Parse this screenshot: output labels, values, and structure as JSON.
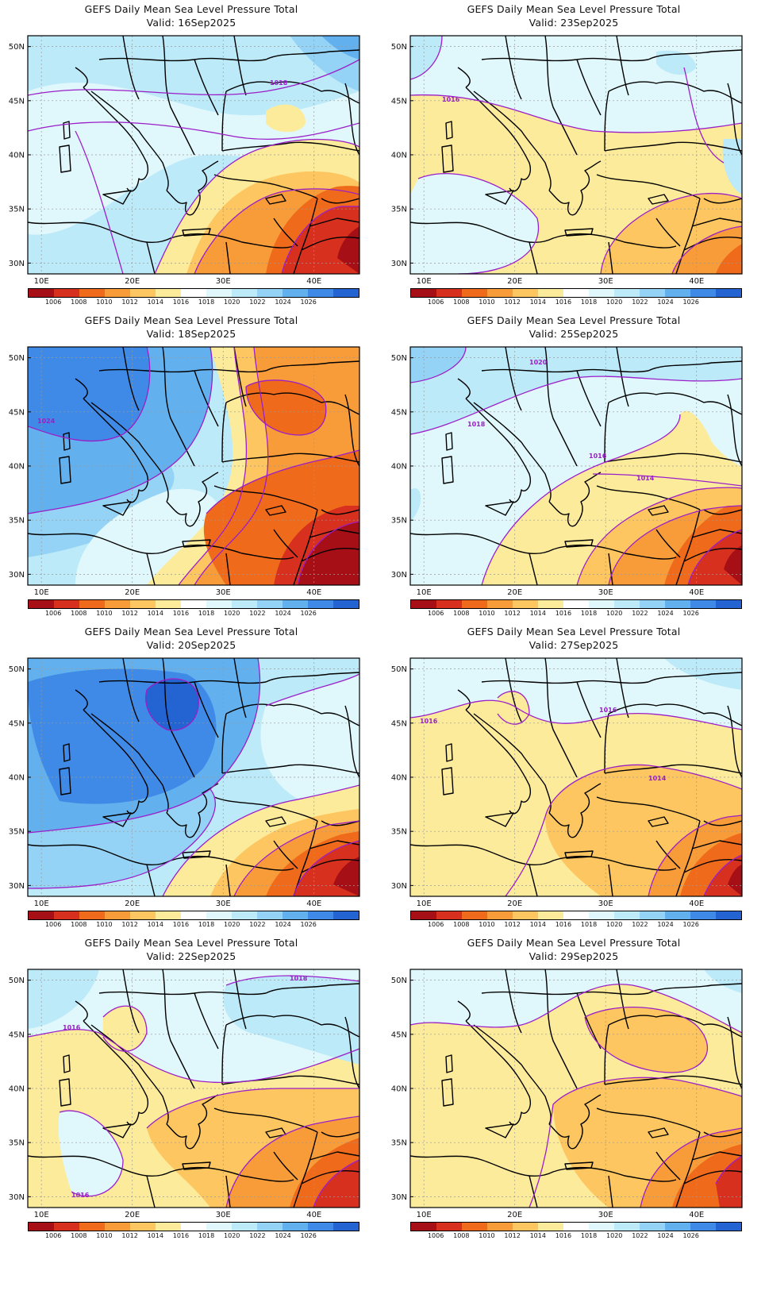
{
  "panels": [
    {
      "title": "GEFS Daily Mean Sea Level Pressure Total",
      "valid": "Valid: 16Sep2025",
      "theme": "a"
    },
    {
      "title": "GEFS Daily Mean Sea Level Pressure Total",
      "valid": "Valid: 23Sep2025",
      "theme": "b"
    },
    {
      "title": "GEFS Daily Mean Sea Level Pressure Total",
      "valid": "Valid: 18Sep2025",
      "theme": "c"
    },
    {
      "title": "GEFS Daily Mean Sea Level Pressure Total",
      "valid": "Valid: 25Sep2025",
      "theme": "d"
    },
    {
      "title": "GEFS Daily Mean Sea Level Pressure Total",
      "valid": "Valid: 20Sep2025",
      "theme": "e"
    },
    {
      "title": "GEFS Daily Mean Sea Level Pressure Total",
      "valid": "Valid: 27Sep2025",
      "theme": "f"
    },
    {
      "title": "GEFS Daily Mean Sea Level Pressure Total",
      "valid": "Valid: 22Sep2025",
      "theme": "g"
    },
    {
      "title": "GEFS Daily Mean Sea Level Pressure Total",
      "valid": "Valid: 29Sep2025",
      "theme": "h"
    }
  ],
  "lat_labels": [
    "50N",
    "45N",
    "40N",
    "35N",
    "30N"
  ],
  "lon_labels": [
    "10E",
    "20E",
    "30E",
    "40E"
  ],
  "colorbar": {
    "labels": [
      "1006",
      "1008",
      "1010",
      "1012",
      "1014",
      "1016",
      "1018",
      "1020",
      "1022",
      "1024",
      "1026"
    ],
    "colors": [
      "#a50f15",
      "#d7301f",
      "#ef6a1a",
      "#f89c3a",
      "#fdc660",
      "#fdeb9c",
      "#ffffff",
      "#e0f8fc",
      "#bdeaf8",
      "#94d3f5",
      "#62b0ee",
      "#3f8ae6",
      "#2364d2"
    ]
  },
  "contour_labels": {
    "a": [
      "1018"
    ],
    "b": [
      "1016"
    ],
    "c": [
      "1024"
    ],
    "d": [
      "1020",
      "1018",
      "1016",
      "1014"
    ],
    "e": [],
    "f": [
      "1016",
      "1016",
      "1014"
    ],
    "g": [
      "1018",
      "1016",
      "1016"
    ],
    "h": []
  },
  "colors": {
    "contour": "#9b1fc9",
    "coast": "#000000",
    "grid": "#999999"
  }
}
